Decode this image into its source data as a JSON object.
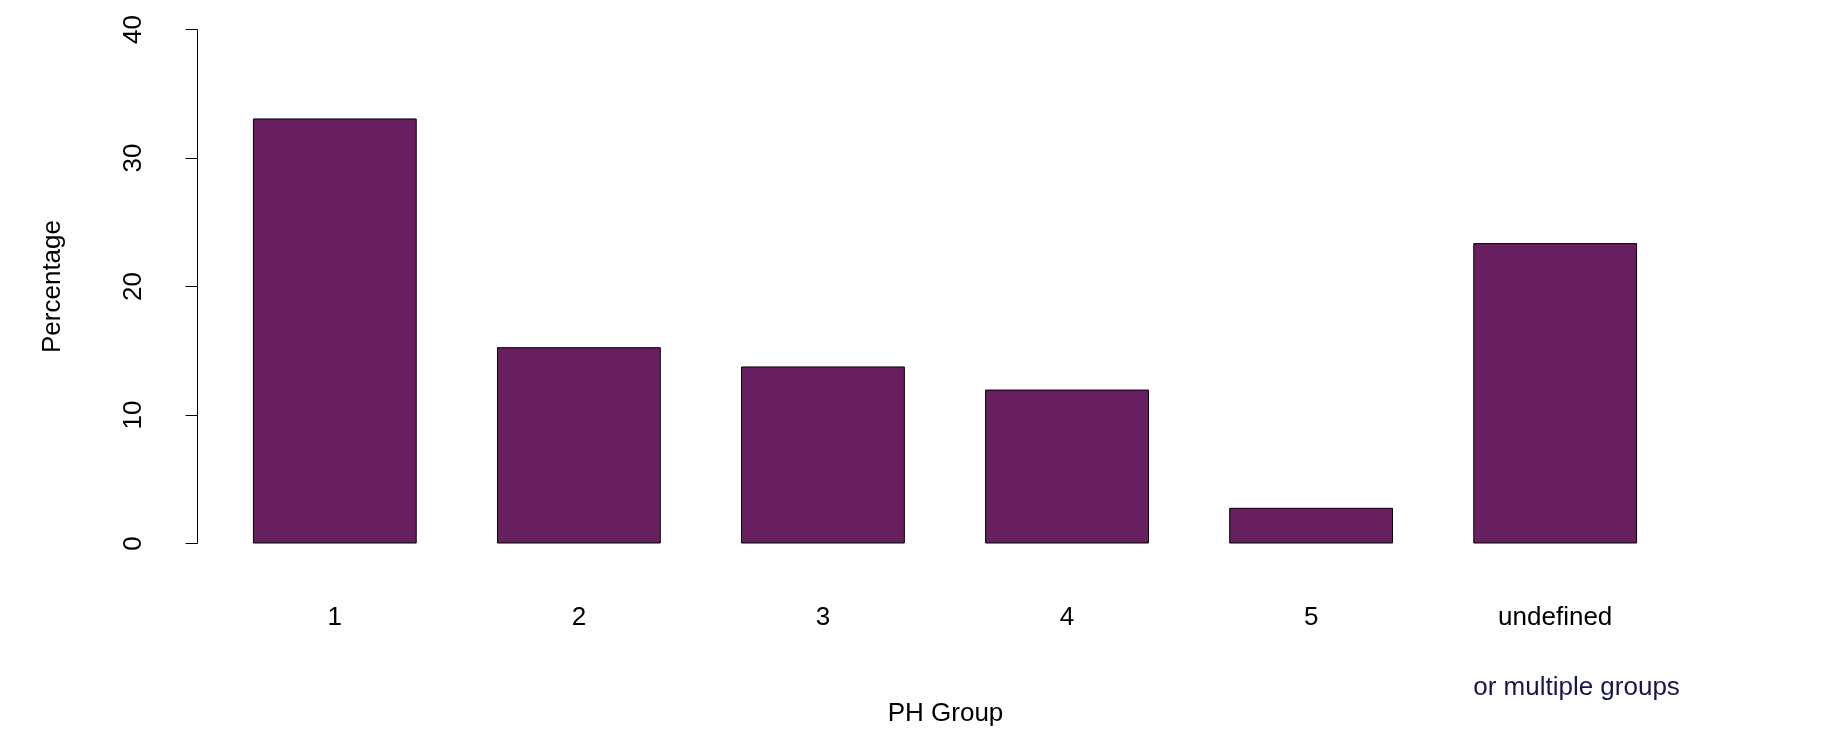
{
  "chart_data": {
    "type": "bar",
    "xlabel": "PH Group",
    "ylabel": "Percentage",
    "categories": [
      "1",
      "2",
      "3",
      "4",
      "5",
      "undefined"
    ],
    "values": [
      33.0,
      15.2,
      13.7,
      11.9,
      2.7,
      23.3
    ],
    "color": "#671f60",
    "ylim": [
      0,
      40
    ],
    "yticks": [
      0,
      10,
      20,
      30,
      40
    ],
    "grid": false,
    "annotations": [
      "or multiple groups"
    ]
  }
}
